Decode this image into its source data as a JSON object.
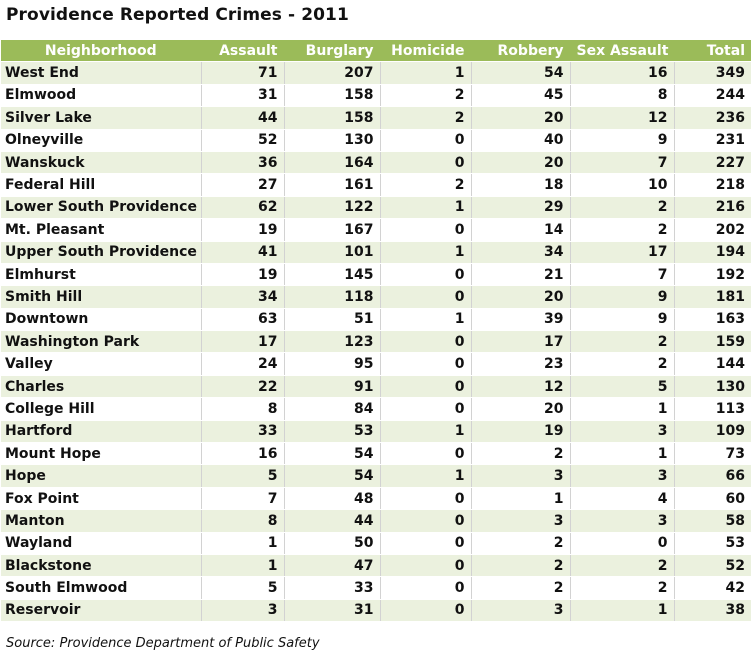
{
  "title": "Providence Reported Crimes - 2011",
  "source": "Source: Providence Department of Public Safety",
  "colors": {
    "header_bg": "#9bbb59",
    "header_text": "#ffffff",
    "band_row": "#ebf1de",
    "plain_row": "#ffffff"
  },
  "chart_data": {
    "type": "table",
    "title": "Providence Reported Crimes - 2011",
    "columns": [
      "Neighborhood",
      "Assault",
      "Burglary",
      "Homicide",
      "Robbery",
      "Sex Assault",
      "Total"
    ],
    "rows": [
      [
        "West End",
        71,
        207,
        1,
        54,
        16,
        349
      ],
      [
        "Elmwood",
        31,
        158,
        2,
        45,
        8,
        244
      ],
      [
        "Silver Lake",
        44,
        158,
        2,
        20,
        12,
        236
      ],
      [
        "Olneyville",
        52,
        130,
        0,
        40,
        9,
        231
      ],
      [
        "Wanskuck",
        36,
        164,
        0,
        20,
        7,
        227
      ],
      [
        "Federal Hill",
        27,
        161,
        2,
        18,
        10,
        218
      ],
      [
        "Lower South Providence",
        62,
        122,
        1,
        29,
        2,
        216
      ],
      [
        "Mt. Pleasant",
        19,
        167,
        0,
        14,
        2,
        202
      ],
      [
        "Upper South Providence",
        41,
        101,
        1,
        34,
        17,
        194
      ],
      [
        "Elmhurst",
        19,
        145,
        0,
        21,
        7,
        192
      ],
      [
        "Smith Hill",
        34,
        118,
        0,
        20,
        9,
        181
      ],
      [
        "Downtown",
        63,
        51,
        1,
        39,
        9,
        163
      ],
      [
        "Washington Park",
        17,
        123,
        0,
        17,
        2,
        159
      ],
      [
        "Valley",
        24,
        95,
        0,
        23,
        2,
        144
      ],
      [
        "Charles",
        22,
        91,
        0,
        12,
        5,
        130
      ],
      [
        "College Hill",
        8,
        84,
        0,
        20,
        1,
        113
      ],
      [
        "Hartford",
        33,
        53,
        1,
        19,
        3,
        109
      ],
      [
        "Mount Hope",
        16,
        54,
        0,
        2,
        1,
        73
      ],
      [
        "Hope",
        5,
        54,
        1,
        3,
        3,
        66
      ],
      [
        "Fox Point",
        7,
        48,
        0,
        1,
        4,
        60
      ],
      [
        "Manton",
        8,
        44,
        0,
        3,
        3,
        58
      ],
      [
        "Wayland",
        1,
        50,
        0,
        2,
        0,
        53
      ],
      [
        "Blackstone",
        1,
        47,
        0,
        2,
        2,
        52
      ],
      [
        "South Elmwood",
        5,
        33,
        0,
        2,
        2,
        42
      ],
      [
        "Reservoir",
        3,
        31,
        0,
        3,
        1,
        38
      ]
    ]
  }
}
